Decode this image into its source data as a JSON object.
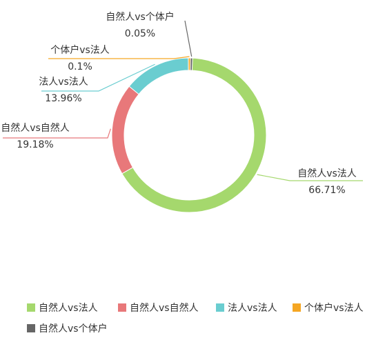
{
  "chart_data": {
    "type": "pie",
    "variant": "donut",
    "labels": [
      "自然人vs法人",
      "自然人vs自然人",
      "法人vs法人",
      "个体户vs法人",
      "自然人vs个体户"
    ],
    "values": [
      66.71,
      19.18,
      13.96,
      0.1,
      0.05
    ],
    "value_labels": [
      "66.71%",
      "19.18%",
      "13.96%",
      "0.1%",
      "0.05%"
    ],
    "colors": [
      "#a5d86d",
      "#e8787a",
      "#6acdd0",
      "#f5a623",
      "#666666"
    ],
    "legend": {
      "position": "bottom",
      "items": [
        "自然人vs法人",
        "自然人vs自然人",
        "法人vs法人",
        "个体户vs法人",
        "自然人vs个体户"
      ]
    }
  }
}
